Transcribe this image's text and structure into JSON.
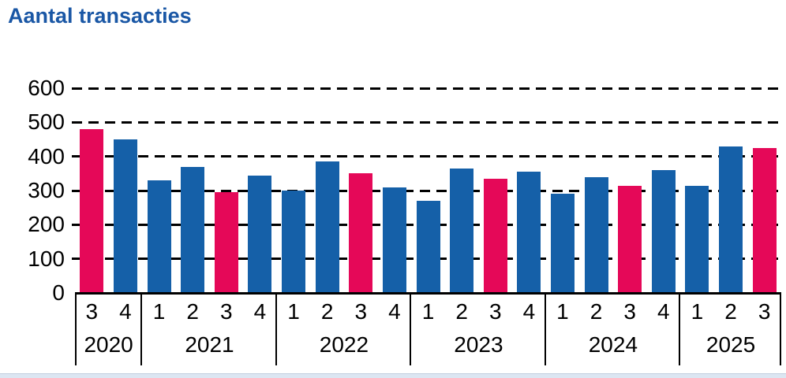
{
  "title": "Aantal transacties",
  "chart_data": {
    "type": "bar",
    "title": "Aantal transacties",
    "xlabel": "",
    "ylabel": "",
    "ylim": [
      0,
      600
    ],
    "yticks": [
      0,
      100,
      200,
      300,
      400,
      500,
      600
    ],
    "grid": "horizontal dashed black gridlines, bars drawn on top",
    "legend": "none",
    "highlighted_quarter": "3",
    "colors": {
      "title": "#1a57a5",
      "default": "#1560a8",
      "highlight": "#e50858"
    },
    "groups": [
      {
        "year": "2020",
        "quarters": [
          "3",
          "4"
        ],
        "values": [
          480,
          450
        ]
      },
      {
        "year": "2021",
        "quarters": [
          "1",
          "2",
          "3",
          "4"
        ],
        "values": [
          330,
          370,
          295,
          345
        ]
      },
      {
        "year": "2022",
        "quarters": [
          "1",
          "2",
          "3",
          "4"
        ],
        "values": [
          300,
          385,
          350,
          310
        ]
      },
      {
        "year": "2023",
        "quarters": [
          "1",
          "2",
          "3",
          "4"
        ],
        "values": [
          270,
          365,
          335,
          355
        ]
      },
      {
        "year": "2024",
        "quarters": [
          "1",
          "2",
          "3",
          "4"
        ],
        "values": [
          290,
          340,
          315,
          360
        ]
      },
      {
        "year": "2025",
        "quarters": [
          "1",
          "2",
          "3"
        ],
        "values": [
          315,
          430,
          425
        ]
      }
    ]
  }
}
